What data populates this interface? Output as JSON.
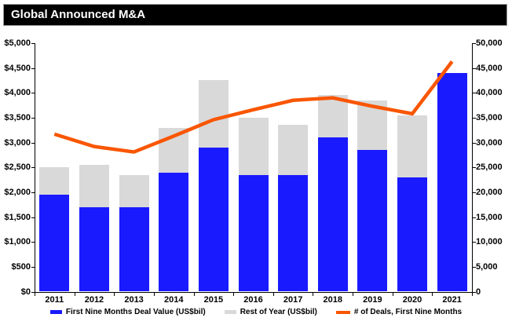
{
  "title": "Global Announced M&A",
  "chart_data": {
    "type": "bar",
    "subtype": "stacked-bars-with-line-overlay",
    "title": "Global Announced M&A",
    "categories": [
      "2011",
      "2012",
      "2013",
      "2014",
      "2015",
      "2016",
      "2017",
      "2018",
      "2019",
      "2020",
      "2021"
    ],
    "series": [
      {
        "name": "First Nine Months Deal Value (US$bil)",
        "type": "bar",
        "axis": "left",
        "color": "#1a1aff",
        "values": [
          1950,
          1700,
          1700,
          2400,
          2900,
          2350,
          2350,
          3100,
          2850,
          2300,
          4400
        ]
      },
      {
        "name": "Rest of Year (US$bil)",
        "type": "bar",
        "axis": "left",
        "color": "#d9d9d9",
        "values": [
          550,
          850,
          650,
          900,
          1350,
          1150,
          1000,
          850,
          1000,
          1250,
          0
        ]
      },
      {
        "name": "# of Deals, First Nine Months",
        "type": "line",
        "axis": "right",
        "color": "#f95602",
        "values": [
          31700,
          29200,
          28100,
          31300,
          34600,
          36600,
          38500,
          39000,
          37300,
          35800,
          46300
        ]
      }
    ],
    "axes": {
      "left": {
        "min": 0,
        "max": 5000,
        "step": 500,
        "prefix": "$"
      },
      "right": {
        "min": 0,
        "max": 50000,
        "step": 5000,
        "prefix": ""
      }
    },
    "grid": false,
    "legend_position": "bottom",
    "colors": {
      "title_bar_bg": "#000000",
      "title_text": "#ffffff",
      "axis": "#000000",
      "background": "#ffffff"
    }
  }
}
